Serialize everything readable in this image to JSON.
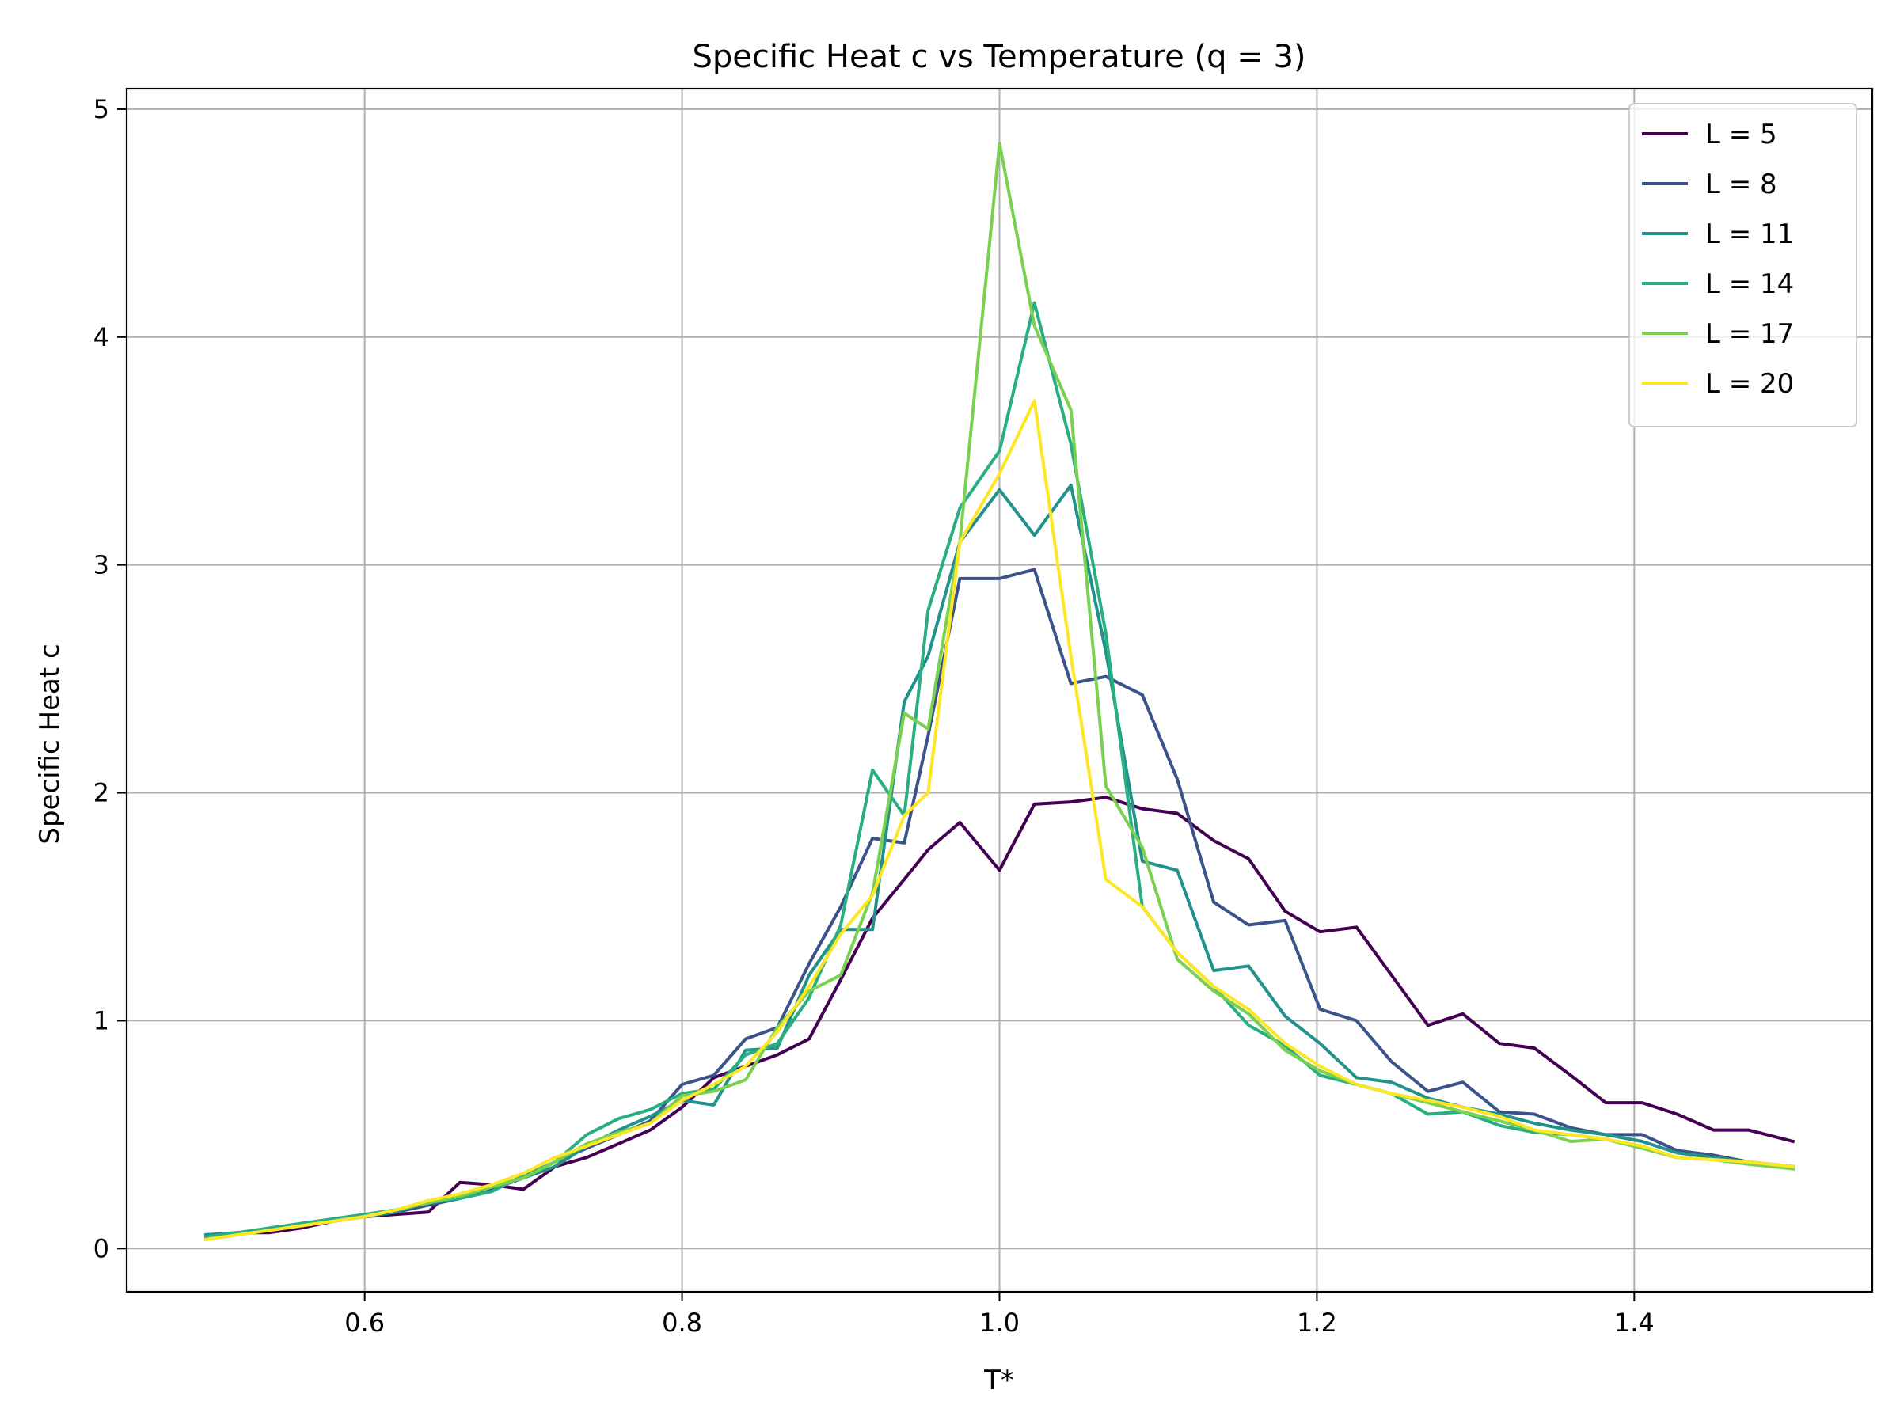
{
  "chart_data": {
    "type": "line",
    "title": "Specific Heat c vs Temperature (q = 3)",
    "xlabel": "T*",
    "ylabel": "Specific Heat c",
    "xlim": [
      0.45,
      1.55
    ],
    "ylim": [
      -0.19,
      5.09
    ],
    "xticks": [
      0.6,
      0.8,
      1.0,
      1.2,
      1.4
    ],
    "xtick_labels": [
      "0.6",
      "0.8",
      "1.0",
      "1.2",
      "1.4"
    ],
    "yticks": [
      0,
      1,
      2,
      3,
      4,
      5
    ],
    "ytick_labels": [
      "0",
      "1",
      "2",
      "3",
      "4",
      "5"
    ],
    "grid": true,
    "legend_position": "top-right",
    "x": [
      0.5,
      0.52,
      0.54,
      0.56,
      0.58,
      0.6,
      0.62,
      0.64,
      0.66,
      0.68,
      0.7,
      0.72,
      0.74,
      0.76,
      0.78,
      0.8,
      0.82,
      0.84,
      0.86,
      0.88,
      0.9,
      0.92,
      0.94,
      0.955,
      0.975,
      1.0,
      1.022,
      1.045,
      1.067,
      1.09,
      1.112,
      1.135,
      1.157,
      1.18,
      1.202,
      1.225,
      1.247,
      1.27,
      1.292,
      1.315,
      1.337,
      1.36,
      1.382,
      1.405,
      1.427,
      1.45,
      1.472,
      1.5
    ],
    "series": [
      {
        "name": "L = 5",
        "color": "#440154",
        "values": [
          0.05,
          0.07,
          0.07,
          0.09,
          0.12,
          0.14,
          0.15,
          0.16,
          0.29,
          0.28,
          0.26,
          0.36,
          0.4,
          0.46,
          0.52,
          0.62,
          0.75,
          0.8,
          0.85,
          0.92,
          1.18,
          1.45,
          1.62,
          1.75,
          1.87,
          1.66,
          1.95,
          1.96,
          1.98,
          1.93,
          1.91,
          1.79,
          1.71,
          1.48,
          1.39,
          1.41,
          1.2,
          0.98,
          1.03,
          0.9,
          0.88,
          0.76,
          0.64,
          0.64,
          0.59,
          0.52,
          0.52,
          0.47
        ]
      },
      {
        "name": "L = 8",
        "color": "#3b528b",
        "values": [
          0.06,
          0.07,
          0.08,
          0.11,
          0.12,
          0.14,
          0.16,
          0.19,
          0.22,
          0.26,
          0.31,
          0.38,
          0.44,
          0.5,
          0.56,
          0.72,
          0.76,
          0.92,
          0.97,
          1.25,
          1.5,
          1.8,
          1.78,
          2.25,
          2.94,
          2.94,
          2.98,
          2.48,
          2.51,
          2.43,
          2.06,
          1.52,
          1.42,
          1.44,
          1.05,
          1.0,
          0.82,
          0.69,
          0.73,
          0.6,
          0.59,
          0.53,
          0.5,
          0.5,
          0.43,
          0.41,
          0.38,
          0.36
        ]
      },
      {
        "name": "L = 11",
        "color": "#21918c",
        "values": [
          0.06,
          0.07,
          0.08,
          0.1,
          0.12,
          0.14,
          0.16,
          0.21,
          0.22,
          0.27,
          0.31,
          0.36,
          0.45,
          0.52,
          0.58,
          0.65,
          0.63,
          0.87,
          0.88,
          1.2,
          1.4,
          1.4,
          2.4,
          2.6,
          3.1,
          3.33,
          3.13,
          3.35,
          2.62,
          1.7,
          1.66,
          1.22,
          1.24,
          1.02,
          0.9,
          0.75,
          0.73,
          0.66,
          0.62,
          0.59,
          0.55,
          0.52,
          0.5,
          0.47,
          0.42,
          0.4,
          0.38,
          0.36
        ]
      },
      {
        "name": "L = 14",
        "color": "#28ae80",
        "values": [
          0.05,
          0.07,
          0.09,
          0.11,
          0.13,
          0.15,
          0.17,
          0.2,
          0.22,
          0.25,
          0.32,
          0.38,
          0.5,
          0.57,
          0.61,
          0.68,
          0.7,
          0.85,
          0.9,
          1.1,
          1.42,
          2.1,
          1.9,
          2.8,
          3.25,
          3.5,
          4.15,
          3.53,
          2.7,
          1.5,
          1.3,
          1.15,
          0.98,
          0.89,
          0.76,
          0.72,
          0.68,
          0.59,
          0.6,
          0.54,
          0.51,
          0.5,
          0.48,
          0.44,
          0.4,
          0.39,
          0.38,
          0.35
        ]
      },
      {
        "name": "L = 17",
        "color": "#7ad151",
        "values": [
          0.04,
          0.06,
          0.08,
          0.1,
          0.12,
          0.14,
          0.17,
          0.2,
          0.23,
          0.27,
          0.31,
          0.38,
          0.46,
          0.51,
          0.55,
          0.67,
          0.69,
          0.74,
          0.97,
          1.13,
          1.2,
          1.56,
          2.35,
          2.28,
          3.1,
          4.85,
          4.05,
          3.68,
          2.03,
          1.76,
          1.27,
          1.13,
          1.03,
          0.87,
          0.78,
          0.72,
          0.68,
          0.64,
          0.6,
          0.56,
          0.52,
          0.47,
          0.48,
          0.44,
          0.4,
          0.39,
          0.37,
          0.35
        ]
      },
      {
        "name": "L = 20",
        "color": "#fde725",
        "values": [
          0.04,
          0.06,
          0.08,
          0.1,
          0.12,
          0.14,
          0.17,
          0.21,
          0.24,
          0.28,
          0.33,
          0.4,
          0.45,
          0.5,
          0.55,
          0.65,
          0.72,
          0.8,
          0.95,
          1.15,
          1.38,
          1.55,
          1.9,
          2.0,
          3.1,
          3.4,
          3.72,
          2.6,
          1.62,
          1.5,
          1.3,
          1.15,
          1.05,
          0.9,
          0.8,
          0.72,
          0.68,
          0.65,
          0.62,
          0.58,
          0.52,
          0.5,
          0.48,
          0.45,
          0.4,
          0.39,
          0.38,
          0.36
        ]
      }
    ]
  }
}
